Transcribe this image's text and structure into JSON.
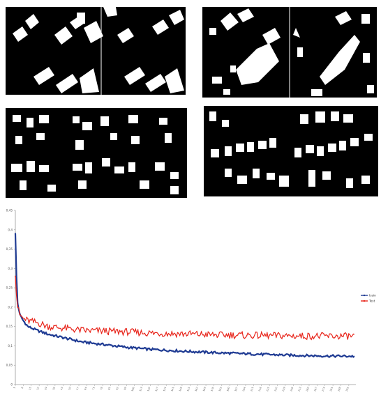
{
  "chart_data": {
    "type": "line",
    "title": "",
    "xlabel": "",
    "ylabel": "",
    "ylim": [
      0,
      0.45
    ],
    "y_ticks": [
      "0",
      "0,05",
      "0,1",
      "0,15",
      "0,2",
      "0,25",
      "0,3",
      "0,35",
      "0,4",
      "0,45"
    ],
    "x_range": [
      1,
      300
    ],
    "x_tick_start": 1,
    "x_tick_step": 7,
    "grid": false,
    "legend": "right",
    "series": [
      {
        "name": "train",
        "color": "#1f3b93",
        "x": [
          1,
          2,
          3,
          5,
          8,
          12,
          20,
          30,
          45,
          60,
          80,
          100,
          120,
          150,
          180,
          210,
          240,
          270,
          300
        ],
        "y": [
          0.39,
          0.28,
          0.21,
          0.18,
          0.165,
          0.15,
          0.14,
          0.13,
          0.12,
          0.11,
          0.103,
          0.096,
          0.091,
          0.086,
          0.082,
          0.079,
          0.076,
          0.074,
          0.073
        ]
      },
      {
        "name": "Test",
        "color": "#e8261c",
        "x": [
          1,
          2,
          3,
          5,
          8,
          12,
          20,
          30,
          45,
          60,
          80,
          100,
          120,
          150,
          180,
          210,
          240,
          270,
          300
        ],
        "y": [
          0.28,
          0.23,
          0.2,
          0.18,
          0.17,
          0.165,
          0.16,
          0.15,
          0.145,
          0.14,
          0.138,
          0.136,
          0.133,
          0.131,
          0.128,
          0.127,
          0.126,
          0.125,
          0.125
        ]
      }
    ]
  },
  "mask_panels": [
    {
      "name": "mask-panel-top-left"
    },
    {
      "name": "mask-panel-top-right"
    },
    {
      "name": "mask-panel-middle-left"
    },
    {
      "name": "mask-panel-middle-right"
    }
  ]
}
